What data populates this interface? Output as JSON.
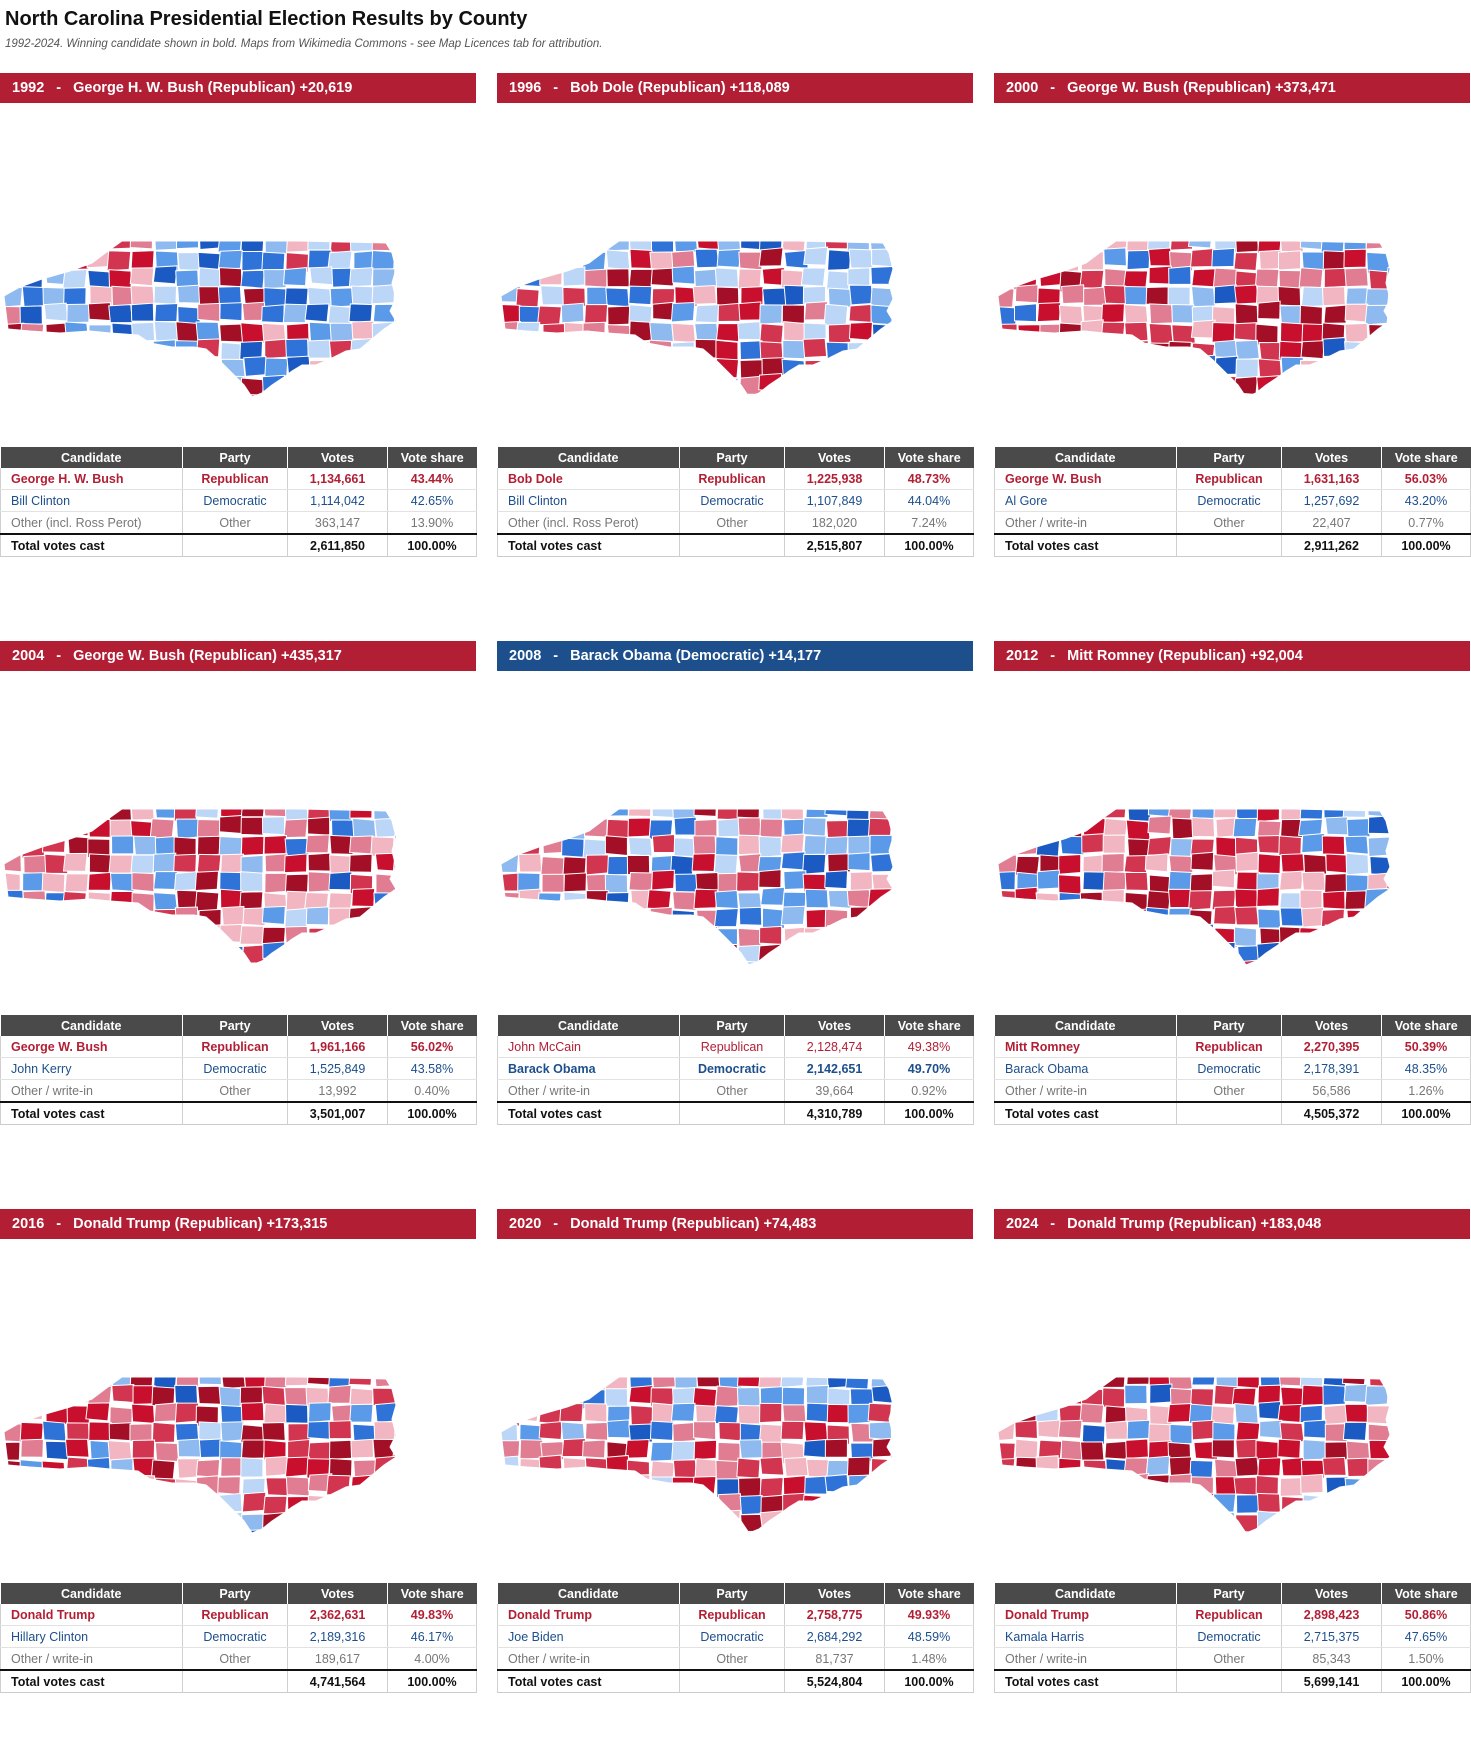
{
  "title": "North Carolina Presidential Election Results by County",
  "subtitle": "1992-2024. Winning candidate shown in bold. Maps from Wikimedia Commons - see Map Licences tab for attribution.",
  "colors": {
    "republican": "#b21f35",
    "democratic": "#1d4f8c",
    "table_header": "#4a4a4a",
    "rep_shades": [
      "#f2b6c2",
      "#e07d92",
      "#d2354f",
      "#c8102e",
      "#a30f26"
    ],
    "dem_shades": [
      "#bcd6f7",
      "#8fbaf0",
      "#5a9ae8",
      "#2f73d9",
      "#1b5ac2"
    ]
  },
  "table_headers": [
    "Candidate",
    "Party",
    "Votes",
    "Vote share"
  ],
  "elections": [
    {
      "year": "1992",
      "winner_party": "republican",
      "header": "George H. W. Bush (Republican) +20,619",
      "rows": [
        {
          "candidate": "George H. W. Bush",
          "party": "Republican",
          "votes": "1,134,661",
          "share": "43.44%",
          "type": "rep",
          "winner": true
        },
        {
          "candidate": "Bill Clinton",
          "party": "Democratic",
          "votes": "1,114,042",
          "share": "42.65%",
          "type": "dem",
          "winner": false
        },
        {
          "candidate": "Other (incl. Ross Perot)",
          "party": "Other",
          "votes": "363,147",
          "share": "13.90%",
          "type": "oth",
          "winner": false
        }
      ],
      "total": {
        "label": "Total votes cast",
        "votes": "2,611,850",
        "share": "100.00%"
      }
    },
    {
      "year": "1996",
      "winner_party": "republican",
      "header": "Bob Dole (Republican) +118,089",
      "rows": [
        {
          "candidate": "Bob Dole",
          "party": "Republican",
          "votes": "1,225,938",
          "share": "48.73%",
          "type": "rep",
          "winner": true
        },
        {
          "candidate": "Bill Clinton",
          "party": "Democratic",
          "votes": "1,107,849",
          "share": "44.04%",
          "type": "dem",
          "winner": false
        },
        {
          "candidate": "Other (incl. Ross Perot)",
          "party": "Other",
          "votes": "182,020",
          "share": "7.24%",
          "type": "oth",
          "winner": false
        }
      ],
      "total": {
        "label": "Total votes cast",
        "votes": "2,515,807",
        "share": "100.00%"
      }
    },
    {
      "year": "2000",
      "winner_party": "republican",
      "header": "George W. Bush (Republican) +373,471",
      "rows": [
        {
          "candidate": "George W. Bush",
          "party": "Republican",
          "votes": "1,631,163",
          "share": "56.03%",
          "type": "rep",
          "winner": true
        },
        {
          "candidate": "Al Gore",
          "party": "Democratic",
          "votes": "1,257,692",
          "share": "43.20%",
          "type": "dem",
          "winner": false
        },
        {
          "candidate": "Other / write-in",
          "party": "Other",
          "votes": "22,407",
          "share": "0.77%",
          "type": "oth",
          "winner": false
        }
      ],
      "total": {
        "label": "Total votes cast",
        "votes": "2,911,262",
        "share": "100.00%"
      }
    },
    {
      "year": "2004",
      "winner_party": "republican",
      "header": "George W. Bush (Republican) +435,317",
      "rows": [
        {
          "candidate": "George W. Bush",
          "party": "Republican",
          "votes": "1,961,166",
          "share": "56.02%",
          "type": "rep",
          "winner": true
        },
        {
          "candidate": "John Kerry",
          "party": "Democratic",
          "votes": "1,525,849",
          "share": "43.58%",
          "type": "dem",
          "winner": false
        },
        {
          "candidate": "Other / write-in",
          "party": "Other",
          "votes": "13,992",
          "share": "0.40%",
          "type": "oth",
          "winner": false
        }
      ],
      "total": {
        "label": "Total votes cast",
        "votes": "3,501,007",
        "share": "100.00%"
      }
    },
    {
      "year": "2008",
      "winner_party": "democratic",
      "header": "Barack Obama (Democratic) +14,177",
      "rows": [
        {
          "candidate": "John McCain",
          "party": "Republican",
          "votes": "2,128,474",
          "share": "49.38%",
          "type": "rep",
          "winner": false
        },
        {
          "candidate": "Barack Obama",
          "party": "Democratic",
          "votes": "2,142,651",
          "share": "49.70%",
          "type": "dem",
          "winner": true
        },
        {
          "candidate": "Other / write-in",
          "party": "Other",
          "votes": "39,664",
          "share": "0.92%",
          "type": "oth",
          "winner": false
        }
      ],
      "total": {
        "label": "Total votes cast",
        "votes": "4,310,789",
        "share": "100.00%"
      }
    },
    {
      "year": "2012",
      "winner_party": "republican",
      "header": "Mitt Romney (Republican) +92,004",
      "rows": [
        {
          "candidate": "Mitt Romney",
          "party": "Republican",
          "votes": "2,270,395",
          "share": "50.39%",
          "type": "rep",
          "winner": true
        },
        {
          "candidate": "Barack Obama",
          "party": "Democratic",
          "votes": "2,178,391",
          "share": "48.35%",
          "type": "dem",
          "winner": false
        },
        {
          "candidate": "Other / write-in",
          "party": "Other",
          "votes": "56,586",
          "share": "1.26%",
          "type": "oth",
          "winner": false
        }
      ],
      "total": {
        "label": "Total votes cast",
        "votes": "4,505,372",
        "share": "100.00%"
      }
    },
    {
      "year": "2016",
      "winner_party": "republican",
      "header": "Donald Trump (Republican) +173,315",
      "rows": [
        {
          "candidate": "Donald Trump",
          "party": "Republican",
          "votes": "2,362,631",
          "share": "49.83%",
          "type": "rep",
          "winner": true
        },
        {
          "candidate": "Hillary Clinton",
          "party": "Democratic",
          "votes": "2,189,316",
          "share": "46.17%",
          "type": "dem",
          "winner": false
        },
        {
          "candidate": "Other / write-in",
          "party": "Other",
          "votes": "189,617",
          "share": "4.00%",
          "type": "oth",
          "winner": false
        }
      ],
      "total": {
        "label": "Total votes cast",
        "votes": "4,741,564",
        "share": "100.00%"
      }
    },
    {
      "year": "2020",
      "winner_party": "republican",
      "header": "Donald Trump (Republican) +74,483",
      "rows": [
        {
          "candidate": "Donald Trump",
          "party": "Republican",
          "votes": "2,758,775",
          "share": "49.93%",
          "type": "rep",
          "winner": true
        },
        {
          "candidate": "Joe Biden",
          "party": "Democratic",
          "votes": "2,684,292",
          "share": "48.59%",
          "type": "dem",
          "winner": false
        },
        {
          "candidate": "Other / write-in",
          "party": "Other",
          "votes": "81,737",
          "share": "1.48%",
          "type": "oth",
          "winner": false
        }
      ],
      "total": {
        "label": "Total votes cast",
        "votes": "5,524,804",
        "share": "100.00%"
      }
    },
    {
      "year": "2024",
      "winner_party": "republican",
      "header": "Donald Trump (Republican) +183,048",
      "rows": [
        {
          "candidate": "Donald Trump",
          "party": "Republican",
          "votes": "2,898,423",
          "share": "50.86%",
          "type": "rep",
          "winner": true
        },
        {
          "candidate": "Kamala Harris",
          "party": "Democratic",
          "votes": "2,715,375",
          "share": "47.65%",
          "type": "dem",
          "winner": false
        },
        {
          "candidate": "Other / write-in",
          "party": "Other",
          "votes": "85,343",
          "share": "1.50%",
          "type": "oth",
          "winner": false
        }
      ],
      "total": {
        "label": "Total votes cast",
        "votes": "5,699,141",
        "share": "100.00%"
      }
    }
  ]
}
